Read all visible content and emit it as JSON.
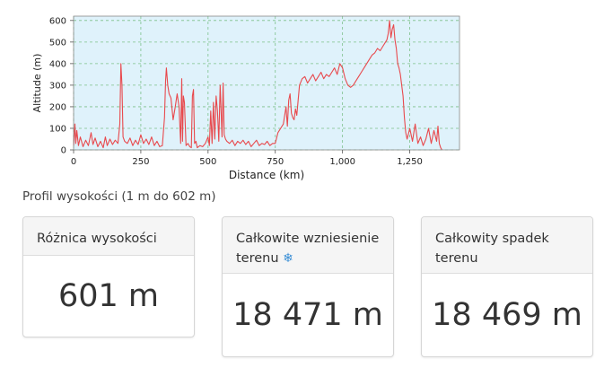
{
  "chart_data": {
    "type": "line",
    "xlabel": "Distance (km)",
    "ylabel": "Altitude (m)",
    "xlim": [
      0,
      1435
    ],
    "ylim": [
      0,
      620
    ],
    "x_ticks": [
      0,
      250,
      500,
      750,
      1000,
      1250
    ],
    "x_tick_labels": [
      "0",
      "250",
      "500",
      "750",
      "1,000",
      "1,250"
    ],
    "y_ticks": [
      0,
      100,
      200,
      300,
      400,
      500,
      600
    ],
    "y_tick_labels": [
      "0",
      "100",
      "200",
      "300",
      "400",
      "500",
      "600"
    ],
    "grid": true,
    "line_color": "#e8494d",
    "background_color": "#dff2fb",
    "series": [
      {
        "x": [
          0,
          5,
          8,
          12,
          18,
          25,
          35,
          45,
          55,
          65,
          72,
          80,
          90,
          100,
          110,
          118,
          125,
          135,
          145,
          155,
          165,
          172,
          176,
          180,
          184,
          190,
          200,
          210,
          220,
          230,
          240,
          250,
          260,
          270,
          280,
          290,
          300,
          310,
          320,
          330,
          338,
          342,
          345,
          350,
          355,
          362,
          370,
          378,
          385,
          392,
          398,
          402,
          405,
          408,
          412,
          418,
          425,
          432,
          438,
          442,
          446,
          450,
          455,
          460,
          470,
          480,
          490,
          500,
          505,
          510,
          515,
          520,
          525,
          530,
          535,
          540,
          545,
          548,
          552,
          556,
          560,
          565,
          570,
          580,
          590,
          600,
          610,
          620,
          630,
          640,
          650,
          660,
          670,
          680,
          690,
          700,
          710,
          720,
          730,
          740,
          750,
          760,
          770,
          780,
          790,
          795,
          800,
          805,
          810,
          815,
          820,
          825,
          830,
          835,
          840,
          850,
          860,
          870,
          880,
          890,
          900,
          910,
          920,
          930,
          940,
          950,
          960,
          970,
          980,
          990,
          1000,
          1010,
          1020,
          1030,
          1040,
          1050,
          1060,
          1070,
          1080,
          1090,
          1100,
          1110,
          1120,
          1130,
          1140,
          1150,
          1160,
          1165,
          1170,
          1175,
          1180,
          1185,
          1190,
          1195,
          1200,
          1205,
          1210,
          1215,
          1220,
          1225,
          1230,
          1235,
          1240,
          1250,
          1260,
          1270,
          1280,
          1290,
          1300,
          1310,
          1320,
          1330,
          1340,
          1350,
          1355,
          1360,
          1365,
          1370
        ],
        "y": [
          20,
          120,
          30,
          90,
          20,
          60,
          15,
          45,
          20,
          80,
          25,
          55,
          15,
          40,
          10,
          60,
          20,
          50,
          25,
          45,
          30,
          120,
          400,
          300,
          60,
          40,
          30,
          55,
          20,
          45,
          25,
          70,
          30,
          50,
          25,
          60,
          20,
          40,
          15,
          20,
          150,
          320,
          380,
          300,
          260,
          240,
          140,
          200,
          260,
          200,
          30,
          330,
          40,
          250,
          220,
          20,
          30,
          15,
          10,
          250,
          280,
          30,
          40,
          10,
          20,
          15,
          30,
          60,
          20,
          180,
          30,
          220,
          50,
          250,
          180,
          40,
          300,
          200,
          60,
          310,
          70,
          50,
          40,
          30,
          45,
          20,
          40,
          30,
          45,
          25,
          40,
          15,
          30,
          45,
          20,
          30,
          25,
          40,
          20,
          30,
          30,
          80,
          100,
          120,
          200,
          110,
          230,
          260,
          170,
          150,
          140,
          190,
          160,
          230,
          300,
          330,
          340,
          310,
          330,
          350,
          320,
          340,
          360,
          330,
          350,
          340,
          360,
          380,
          350,
          400,
          380,
          330,
          300,
          290,
          300,
          320,
          340,
          360,
          380,
          400,
          420,
          440,
          450,
          470,
          460,
          480,
          500,
          510,
          540,
          600,
          520,
          560,
          580,
          510,
          470,
          400,
          380,
          350,
          300,
          250,
          150,
          80,
          50,
          100,
          40,
          120,
          30,
          60,
          20,
          50,
          100,
          30,
          90,
          40,
          110,
          30,
          10,
          0
        ]
      }
    ]
  },
  "subtitle": "Profil wysokości (1 m do 602 m)",
  "cards": [
    {
      "title": "Różnica wysokości",
      "value": "601 m"
    },
    {
      "title": "Całkowite wzniesienie terenu",
      "value": "18 471 m"
    },
    {
      "title": "Całkowity spadek terenu",
      "value": "18 469 m"
    }
  ],
  "icons": {
    "elevation_info": "settings-gears-icon"
  }
}
